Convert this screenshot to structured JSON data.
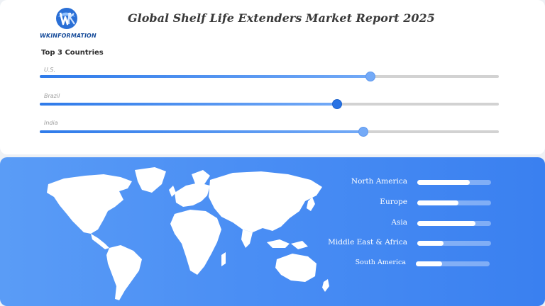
{
  "brand": {
    "name": "WKINFORMATION"
  },
  "header": {
    "title": "Global Shelf Life Extenders Market Report 2025"
  },
  "countries": {
    "heading": "Top 3 Countries",
    "items": [
      {
        "label": "U.S.",
        "value": 0.72,
        "handle": "light"
      },
      {
        "label": "Brazil",
        "value": 0.647,
        "handle": "dark"
      },
      {
        "label": "India",
        "value": 0.705,
        "handle": "light"
      }
    ]
  },
  "regions": {
    "items": [
      {
        "label": "North America",
        "value": 0.71
      },
      {
        "label": "Europe",
        "value": 0.56
      },
      {
        "label": "Asia",
        "value": 0.79
      },
      {
        "label": "Middle East & Africa",
        "value": 0.36
      },
      {
        "label": "South America",
        "value": 0.36
      }
    ]
  },
  "colors": {
    "accent": "#2f7bea",
    "panel_gradient_start": "#5a9cf6",
    "panel_gradient_end": "#3a80f0",
    "track": "#d2d2d2"
  }
}
